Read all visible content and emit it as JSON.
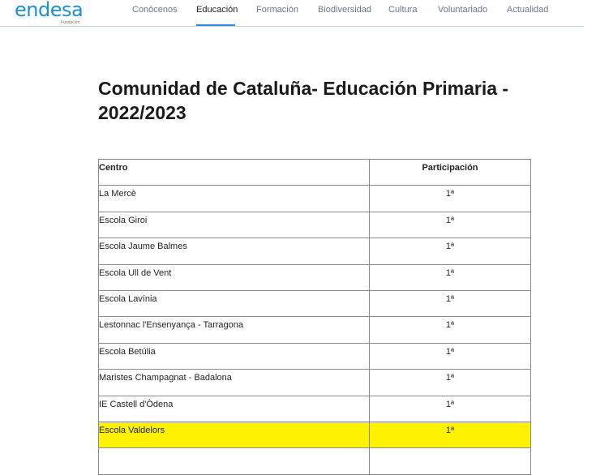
{
  "header": {
    "logo": "endesa",
    "logo_sub": "Fundación",
    "nav": [
      {
        "label": "Conócenos"
      },
      {
        "label": "Educación",
        "active": true
      },
      {
        "label": "Formación"
      },
      {
        "label": "Biodiversidad"
      },
      {
        "label": "Cultura"
      },
      {
        "label": "Voluntariado"
      },
      {
        "label": "Actualidad"
      }
    ]
  },
  "title": "Comunidad de Cataluña- Educación Primaria - 2022/2023",
  "table": {
    "headers": [
      "Centro",
      "Participación"
    ],
    "rows": [
      {
        "centro": "La Mercè",
        "participacion": "1ª"
      },
      {
        "centro": "Escola Giroi",
        "participacion": "1ª"
      },
      {
        "centro": "Escola Jaume Balmes",
        "participacion": "1ª"
      },
      {
        "centro": "Escola Ull de Vent",
        "participacion": "1ª"
      },
      {
        "centro": "Escola Lavínia",
        "participacion": "1ª"
      },
      {
        "centro": "Lestonnac l'Ensenyança - Tarragona",
        "participacion": "1ª"
      },
      {
        "centro": "Escola Betúlia",
        "participacion": "1ª"
      },
      {
        "centro": "Maristes Champagnat - Badalona",
        "participacion": "1ª"
      },
      {
        "centro": "IE Castell d'Òdena",
        "participacion": "1ª"
      },
      {
        "centro": "Escola Valdelors",
        "participacion": "1ª",
        "highlighted": true
      },
      {
        "centro": "",
        "participacion": ""
      }
    ]
  },
  "colors": {
    "brand": "#1a8fd6",
    "highlight": "#fff200",
    "nav_active_underline": "#3a86e8"
  }
}
